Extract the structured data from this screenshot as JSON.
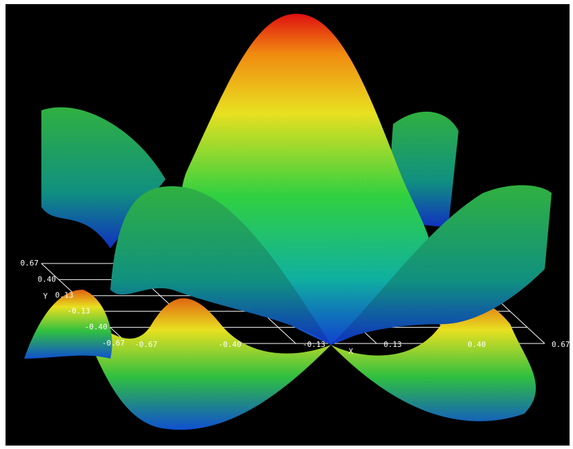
{
  "chart_data": {
    "type": "surface3d",
    "x_label": "X",
    "y_label": "Y",
    "xlim": [
      -0.67,
      0.67
    ],
    "ylim": [
      -0.67,
      0.67
    ],
    "xticks": [
      -0.67,
      {
        "value": -0.4,
        "label": "-0.40"
      },
      -0.13,
      0.13,
      {
        "value": 0.4,
        "label": "0.40"
      },
      0.67
    ],
    "yticks": [
      -0.67,
      {
        "value": -0.4,
        "label": "-0.40"
      },
      -0.13,
      0.13,
      {
        "value": 0.4,
        "label": "0.40"
      },
      0.67
    ],
    "grid": true,
    "grid_color": "#ffffff"
  }
}
